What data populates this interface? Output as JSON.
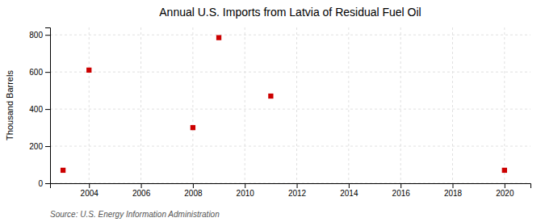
{
  "chart_data": {
    "type": "scatter",
    "title": "Annual U.S. Imports from Latvia of Residual Fuel Oil",
    "ylabel": "Thousand Barrels",
    "source": "Source: U.S. Energy Information Administration",
    "x": [
      2003,
      2004,
      2008,
      2009,
      2011,
      2020
    ],
    "values": [
      70,
      610,
      300,
      785,
      470,
      70
    ],
    "color": "#cc0000",
    "marker": "square",
    "xlim": [
      2002.5,
      2021
    ],
    "ylim": [
      0,
      840
    ],
    "xticks": [
      2004,
      2006,
      2008,
      2010,
      2012,
      2014,
      2016,
      2018,
      2020
    ],
    "yticks": [
      0,
      200,
      400,
      600,
      800
    ],
    "grid": true
  }
}
